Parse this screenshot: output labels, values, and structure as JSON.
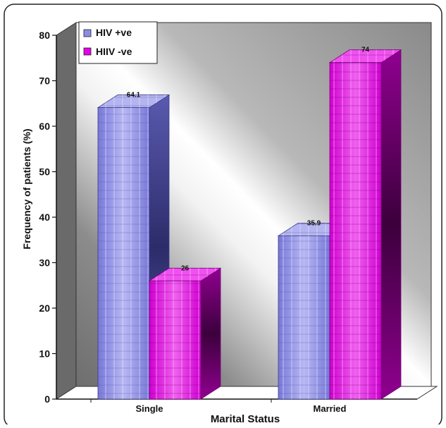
{
  "chart_data": {
    "type": "bar",
    "title": "",
    "xlabel": "Marital Status",
    "ylabel": "Frequency of patients (%)",
    "categories": [
      "Single",
      "Married"
    ],
    "series": [
      {
        "name": "HIV +ve",
        "values": [
          64.1,
          35.9
        ]
      },
      {
        "name": "HIIV -ve",
        "values": [
          26,
          74
        ]
      }
    ],
    "data_labels": [
      [
        "64.1",
        "35.9"
      ],
      [
        "26",
        "74"
      ]
    ],
    "yticks": [
      0,
      10,
      20,
      30,
      40,
      50,
      60,
      70,
      80
    ],
    "ylim": [
      0,
      80
    ],
    "grid": false,
    "legend_position": "top-left",
    "three_d": true,
    "colors": {
      "series": [
        "#8C8CE6",
        "#E600E6"
      ],
      "series_dark": [
        "#3C3C8A",
        "#7A007A"
      ],
      "series_light": [
        "#B4B4F0",
        "#F050F0"
      ],
      "wall": "#9A9A9A",
      "floor": "#FFFFFF"
    }
  }
}
